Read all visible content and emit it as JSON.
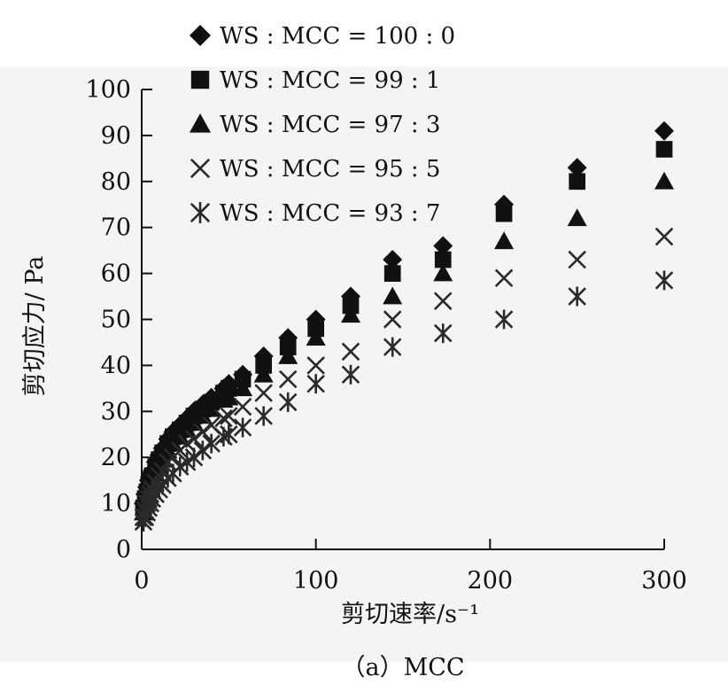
{
  "chart_data": {
    "type": "scatter",
    "xlabel": "剪切速率/s⁻¹",
    "ylabel": "剪切应力/ Pa",
    "caption": "（a）MCC",
    "xlim": [
      0,
      300
    ],
    "ylim": [
      0,
      100
    ],
    "xticks": [
      "0",
      "100",
      "200",
      "300"
    ],
    "yticks": [
      "0",
      "10",
      "20",
      "30",
      "40",
      "50",
      "60",
      "70",
      "80",
      "90",
      "100"
    ],
    "grid": false,
    "legend_position": "top-left",
    "series": [
      {
        "name": "WS : MCC = 100 : 0",
        "marker": "diamond",
        "color": "#111111",
        "points": [
          [
            1,
            10
          ],
          [
            2,
            12
          ],
          [
            3,
            13.5
          ],
          [
            4,
            15
          ],
          [
            5,
            16
          ],
          [
            6,
            17
          ],
          [
            8,
            19
          ],
          [
            10,
            20.5
          ],
          [
            12,
            22
          ],
          [
            15,
            24
          ],
          [
            18,
            25.5
          ],
          [
            22,
            27
          ],
          [
            26,
            28.5
          ],
          [
            30,
            30
          ],
          [
            35,
            31.5
          ],
          [
            40,
            33
          ],
          [
            47,
            35
          ],
          [
            50,
            36
          ],
          [
            58,
            38
          ],
          [
            70,
            42
          ],
          [
            84,
            46
          ],
          [
            100,
            50
          ],
          [
            120,
            55
          ],
          [
            144,
            63
          ],
          [
            173,
            66
          ],
          [
            208,
            75
          ],
          [
            250,
            83
          ],
          [
            300,
            91
          ]
        ]
      },
      {
        "name": "WS : MCC = 99 : 1",
        "marker": "square",
        "color": "#111111",
        "points": [
          [
            1,
            9
          ],
          [
            2,
            11
          ],
          [
            3,
            12.5
          ],
          [
            4,
            14
          ],
          [
            5,
            15
          ],
          [
            6,
            16
          ],
          [
            8,
            18
          ],
          [
            10,
            19.5
          ],
          [
            12,
            21
          ],
          [
            15,
            23
          ],
          [
            18,
            24.5
          ],
          [
            22,
            26
          ],
          [
            26,
            27.5
          ],
          [
            30,
            29
          ],
          [
            35,
            30.5
          ],
          [
            40,
            32
          ],
          [
            47,
            34
          ],
          [
            50,
            35
          ],
          [
            58,
            37
          ],
          [
            70,
            40
          ],
          [
            84,
            44
          ],
          [
            100,
            48
          ],
          [
            120,
            53
          ],
          [
            144,
            60
          ],
          [
            173,
            63
          ],
          [
            208,
            73
          ],
          [
            250,
            80
          ],
          [
            300,
            87
          ]
        ]
      },
      {
        "name": "WS : MCC = 97 : 3",
        "marker": "triangle",
        "color": "#111111",
        "points": [
          [
            1,
            8
          ],
          [
            2,
            10
          ],
          [
            3,
            11.5
          ],
          [
            4,
            13
          ],
          [
            5,
            14
          ],
          [
            6,
            15
          ],
          [
            8,
            16.5
          ],
          [
            10,
            18
          ],
          [
            12,
            19.5
          ],
          [
            15,
            21.5
          ],
          [
            18,
            23
          ],
          [
            22,
            24.5
          ],
          [
            26,
            26
          ],
          [
            30,
            27.5
          ],
          [
            35,
            29
          ],
          [
            40,
            30.5
          ],
          [
            47,
            32.5
          ],
          [
            50,
            33
          ],
          [
            58,
            35
          ],
          [
            70,
            38
          ],
          [
            84,
            42
          ],
          [
            100,
            46
          ],
          [
            120,
            51
          ],
          [
            144,
            55
          ],
          [
            173,
            60
          ],
          [
            208,
            67
          ],
          [
            250,
            72
          ],
          [
            300,
            80
          ]
        ]
      },
      {
        "name": "WS : MCC = 95 : 5",
        "marker": "x",
        "color": "#2a2a2a",
        "points": [
          [
            1,
            7
          ],
          [
            2,
            8.5
          ],
          [
            3,
            10
          ],
          [
            4,
            11
          ],
          [
            5,
            12
          ],
          [
            6,
            13
          ],
          [
            8,
            14.5
          ],
          [
            10,
            16
          ],
          [
            12,
            17
          ],
          [
            15,
            19
          ],
          [
            18,
            20
          ],
          [
            22,
            21.5
          ],
          [
            26,
            23
          ],
          [
            30,
            24
          ],
          [
            35,
            25.5
          ],
          [
            40,
            27
          ],
          [
            47,
            28.5
          ],
          [
            50,
            29
          ],
          [
            58,
            31
          ],
          [
            70,
            34
          ],
          [
            84,
            37
          ],
          [
            100,
            40
          ],
          [
            120,
            43
          ],
          [
            144,
            50
          ],
          [
            173,
            54
          ],
          [
            208,
            59
          ],
          [
            250,
            63
          ],
          [
            300,
            68
          ]
        ]
      },
      {
        "name": "WS : MCC = 93 : 7",
        "marker": "asterisk",
        "color": "#2a2a2a",
        "points": [
          [
            1,
            6
          ],
          [
            2,
            7
          ],
          [
            3,
            8
          ],
          [
            4,
            9
          ],
          [
            5,
            10
          ],
          [
            6,
            11
          ],
          [
            8,
            12
          ],
          [
            10,
            13
          ],
          [
            12,
            14
          ],
          [
            15,
            15.5
          ],
          [
            18,
            16.5
          ],
          [
            22,
            18
          ],
          [
            26,
            19
          ],
          [
            30,
            20
          ],
          [
            35,
            21.5
          ],
          [
            40,
            23
          ],
          [
            47,
            24.5
          ],
          [
            50,
            25
          ],
          [
            58,
            26.5
          ],
          [
            70,
            29
          ],
          [
            84,
            32
          ],
          [
            100,
            36
          ],
          [
            120,
            38
          ],
          [
            144,
            44
          ],
          [
            173,
            47
          ],
          [
            208,
            50
          ],
          [
            250,
            55
          ],
          [
            300,
            58.5
          ]
        ]
      }
    ]
  }
}
